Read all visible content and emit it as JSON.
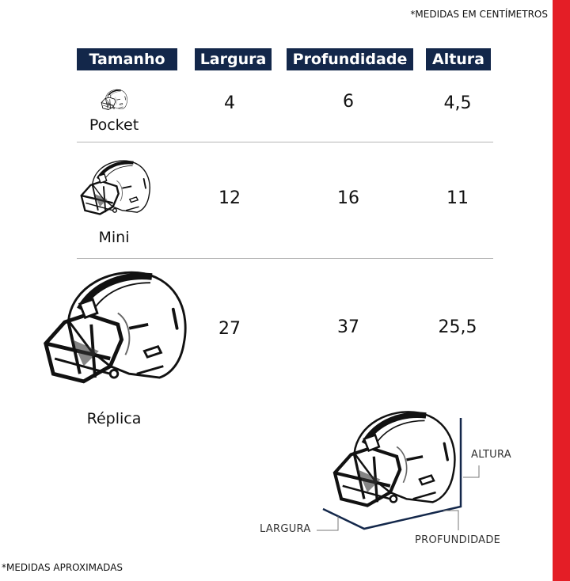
{
  "notes": {
    "units": "*MEDIDAS EM CENTÍMETROS",
    "approximate": "*MEDIDAS APROXIMADAS"
  },
  "table": {
    "headers": [
      "Tamanho",
      "Largura",
      "Profundidade",
      "Altura"
    ],
    "rows": [
      {
        "size": "Pocket",
        "largura": "4",
        "profundidade": "6",
        "altura": "4,5",
        "icon": "helmet-icon"
      },
      {
        "size": "Mini",
        "largura": "12",
        "profundidade": "16",
        "altura": "11",
        "icon": "helmet-icon"
      },
      {
        "size": "Réplica",
        "largura": "27",
        "profundidade": "37",
        "altura": "25,5",
        "icon": "helmet-icon"
      }
    ]
  },
  "diagram": {
    "altura": "ALTURA",
    "largura": "LARGURA",
    "profundidade": "PROFUNDIDADE"
  },
  "colors": {
    "header_bg": "#13274a",
    "accent_red": "#e41e26",
    "dimension_line": "#13274a"
  }
}
